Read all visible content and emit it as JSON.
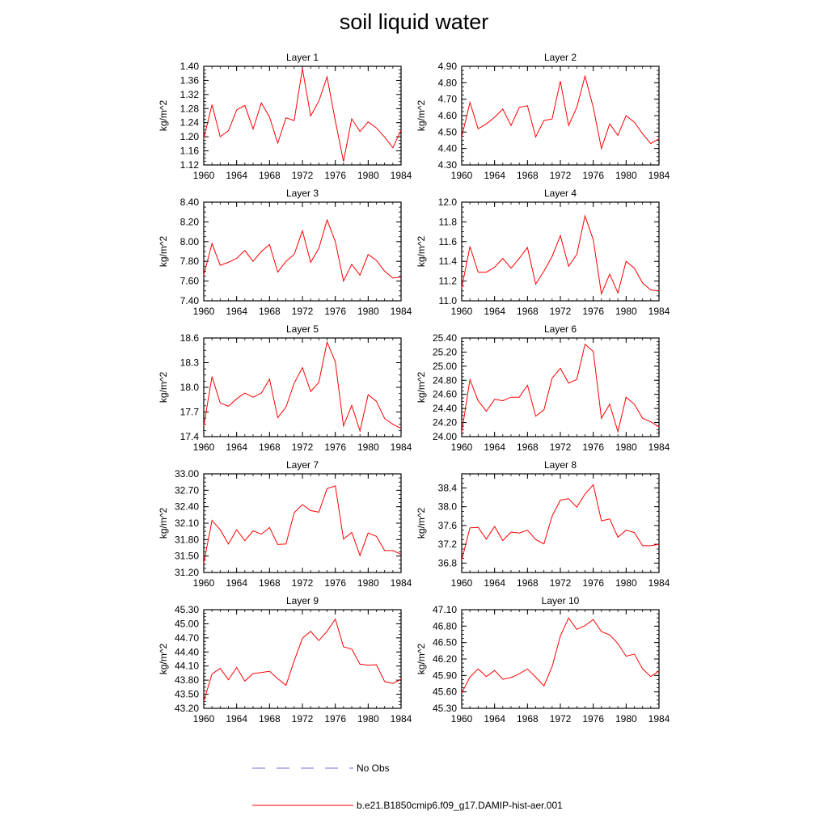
{
  "title": "soil liquid water",
  "legend": [
    {
      "label": "No Obs",
      "color": "#6f6fd8",
      "style": "dashed"
    },
    {
      "label": "b.e21.B1850cmip6.f09_g17.DAMIP-hist-aer.001",
      "color": "#ff0000",
      "style": "solid"
    }
  ],
  "chart_data": [
    {
      "type": "line",
      "title": "Layer 1",
      "ylabel": "kg/m^2",
      "x": [
        1960,
        1961,
        1962,
        1963,
        1964,
        1965,
        1966,
        1967,
        1968,
        1969,
        1970,
        1971,
        1972,
        1973,
        1974,
        1975,
        1976,
        1977,
        1978,
        1979,
        1980,
        1981,
        1982,
        1983,
        1984
      ],
      "xticks": [
        1960,
        1964,
        1968,
        1972,
        1976,
        1980,
        1984
      ],
      "xlim": [
        1960,
        1984
      ],
      "ylim": [
        1.12,
        1.4
      ],
      "yticks": [
        "1.12",
        "1.16",
        "1.20",
        "1.24",
        "1.28",
        "1.32",
        "1.36",
        "1.40"
      ],
      "series": [
        {
          "name": "b.e21.B1850cmip6.f09_g17.DAMIP-hist-aer.001",
          "values": [
            1.195,
            1.291,
            1.2,
            1.217,
            1.276,
            1.289,
            1.222,
            1.296,
            1.256,
            1.182,
            1.254,
            1.246,
            1.393,
            1.259,
            1.301,
            1.37,
            1.245,
            1.13,
            1.251,
            1.215,
            1.242,
            1.225,
            1.199,
            1.169,
            1.219
          ]
        }
      ]
    },
    {
      "type": "line",
      "title": "Layer 2",
      "ylabel": "kg/m^2",
      "x": [
        1960,
        1961,
        1962,
        1963,
        1964,
        1965,
        1966,
        1967,
        1968,
        1969,
        1970,
        1971,
        1972,
        1973,
        1974,
        1975,
        1976,
        1977,
        1978,
        1979,
        1980,
        1981,
        1982,
        1983,
        1984
      ],
      "xticks": [
        1960,
        1964,
        1968,
        1972,
        1976,
        1980,
        1984
      ],
      "xlim": [
        1960,
        1984
      ],
      "ylim": [
        4.3,
        4.9
      ],
      "yticks": [
        "4.30",
        "4.40",
        "4.50",
        "4.60",
        "4.70",
        "4.80",
        "4.90"
      ],
      "series": [
        {
          "name": "b.e21.B1850cmip6.f09_g17.DAMIP-hist-aer.001",
          "values": [
            4.47,
            4.68,
            4.52,
            4.55,
            4.59,
            4.64,
            4.54,
            4.65,
            4.66,
            4.47,
            4.57,
            4.58,
            4.81,
            4.54,
            4.65,
            4.84,
            4.65,
            4.4,
            4.55,
            4.48,
            4.6,
            4.56,
            4.49,
            4.43,
            4.46
          ]
        }
      ]
    },
    {
      "type": "line",
      "title": "Layer 3",
      "ylabel": "kg/m^2",
      "x": [
        1960,
        1961,
        1962,
        1963,
        1964,
        1965,
        1966,
        1967,
        1968,
        1969,
        1970,
        1971,
        1972,
        1973,
        1974,
        1975,
        1976,
        1977,
        1978,
        1979,
        1980,
        1981,
        1982,
        1983,
        1984
      ],
      "xticks": [
        1960,
        1964,
        1968,
        1972,
        1976,
        1980,
        1984
      ],
      "xlim": [
        1960,
        1984
      ],
      "ylim": [
        7.4,
        8.4
      ],
      "yticks": [
        "7.40",
        "7.60",
        "7.80",
        "8.00",
        "8.20",
        "8.40"
      ],
      "series": [
        {
          "name": "b.e21.B1850cmip6.f09_g17.DAMIP-hist-aer.001",
          "values": [
            7.66,
            7.98,
            7.76,
            7.79,
            7.83,
            7.91,
            7.8,
            7.9,
            7.97,
            7.69,
            7.8,
            7.87,
            8.11,
            7.79,
            7.93,
            8.22,
            8.0,
            7.6,
            7.77,
            7.66,
            7.87,
            7.81,
            7.7,
            7.63,
            7.64
          ]
        }
      ]
    },
    {
      "type": "line",
      "title": "Layer 4",
      "ylabel": "kg/m^2",
      "x": [
        1960,
        1961,
        1962,
        1963,
        1964,
        1965,
        1966,
        1967,
        1968,
        1969,
        1970,
        1971,
        1972,
        1973,
        1974,
        1975,
        1976,
        1977,
        1978,
        1979,
        1980,
        1981,
        1982,
        1983,
        1984
      ],
      "xticks": [
        1960,
        1964,
        1968,
        1972,
        1976,
        1980,
        1984
      ],
      "xlim": [
        1960,
        1984
      ],
      "ylim": [
        11.0,
        12.0
      ],
      "yticks": [
        "11.0",
        "11.2",
        "11.4",
        "11.6",
        "11.8",
        "12.0"
      ],
      "series": [
        {
          "name": "b.e21.B1850cmip6.f09_g17.DAMIP-hist-aer.001",
          "values": [
            11.13,
            11.55,
            11.29,
            11.29,
            11.34,
            11.43,
            11.33,
            11.43,
            11.54,
            11.17,
            11.3,
            11.45,
            11.66,
            11.35,
            11.47,
            11.86,
            11.62,
            11.07,
            11.27,
            11.08,
            11.4,
            11.33,
            11.18,
            11.11,
            11.1
          ]
        }
      ]
    },
    {
      "type": "line",
      "title": "Layer 5",
      "ylabel": "kg/m^2",
      "x": [
        1960,
        1961,
        1962,
        1963,
        1964,
        1965,
        1966,
        1967,
        1968,
        1969,
        1970,
        1971,
        1972,
        1973,
        1974,
        1975,
        1976,
        1977,
        1978,
        1979,
        1980,
        1981,
        1982,
        1983,
        1984
      ],
      "xticks": [
        1960,
        1964,
        1968,
        1972,
        1976,
        1980,
        1984
      ],
      "xlim": [
        1960,
        1984
      ],
      "ylim": [
        17.4,
        18.6
      ],
      "yticks": [
        "17.4",
        "17.7",
        "18.0",
        "18.3",
        "18.6"
      ],
      "series": [
        {
          "name": "b.e21.B1850cmip6.f09_g17.DAMIP-hist-aer.001",
          "values": [
            17.53,
            18.13,
            17.81,
            17.77,
            17.86,
            17.93,
            17.88,
            17.93,
            18.1,
            17.63,
            17.76,
            18.05,
            18.24,
            17.95,
            18.06,
            18.55,
            18.31,
            17.53,
            17.78,
            17.47,
            17.91,
            17.83,
            17.62,
            17.55,
            17.5
          ]
        }
      ]
    },
    {
      "type": "line",
      "title": "Layer 6",
      "ylabel": "kg/m^2",
      "x": [
        1960,
        1961,
        1962,
        1963,
        1964,
        1965,
        1966,
        1967,
        1968,
        1969,
        1970,
        1971,
        1972,
        1973,
        1974,
        1975,
        1976,
        1977,
        1978,
        1979,
        1980,
        1981,
        1982,
        1983,
        1984
      ],
      "xticks": [
        1960,
        1964,
        1968,
        1972,
        1976,
        1980,
        1984
      ],
      "xlim": [
        1960,
        1984
      ],
      "ylim": [
        24.0,
        25.4
      ],
      "yticks": [
        "24.00",
        "24.20",
        "24.40",
        "24.60",
        "24.80",
        "25.00",
        "25.20",
        "25.40"
      ],
      "series": [
        {
          "name": "b.e21.B1850cmip6.f09_g17.DAMIP-hist-aer.001",
          "values": [
            24.06,
            24.81,
            24.51,
            24.36,
            24.53,
            24.51,
            24.56,
            24.56,
            24.73,
            24.29,
            24.38,
            24.83,
            24.97,
            24.76,
            24.81,
            25.31,
            25.21,
            24.26,
            24.46,
            24.07,
            24.56,
            24.46,
            24.26,
            24.21,
            24.14
          ]
        }
      ]
    },
    {
      "type": "line",
      "title": "Layer 7",
      "ylabel": "kg/m^2",
      "x": [
        1960,
        1961,
        1962,
        1963,
        1964,
        1965,
        1966,
        1967,
        1968,
        1969,
        1970,
        1971,
        1972,
        1973,
        1974,
        1975,
        1976,
        1977,
        1978,
        1979,
        1980,
        1981,
        1982,
        1983,
        1984
      ],
      "xticks": [
        1960,
        1964,
        1968,
        1972,
        1976,
        1980,
        1984
      ],
      "xlim": [
        1960,
        1984
      ],
      "ylim": [
        31.2,
        33.0
      ],
      "yticks": [
        "31.20",
        "31.50",
        "31.80",
        "32.10",
        "32.40",
        "32.70",
        "33.00"
      ],
      "series": [
        {
          "name": "b.e21.B1850cmip6.f09_g17.DAMIP-hist-aer.001",
          "values": [
            31.37,
            32.15,
            31.98,
            31.72,
            31.98,
            31.78,
            31.96,
            31.9,
            32.02,
            31.71,
            31.72,
            32.29,
            32.44,
            32.33,
            32.3,
            32.73,
            32.78,
            31.81,
            31.93,
            31.51,
            31.92,
            31.86,
            31.6,
            31.6,
            31.53
          ]
        }
      ]
    },
    {
      "type": "line",
      "title": "Layer 8",
      "ylabel": "kg/m^2",
      "x": [
        1960,
        1961,
        1962,
        1963,
        1964,
        1965,
        1966,
        1967,
        1968,
        1969,
        1970,
        1971,
        1972,
        1973,
        1974,
        1975,
        1976,
        1977,
        1978,
        1979,
        1980,
        1981,
        1982,
        1983,
        1984
      ],
      "xticks": [
        1960,
        1964,
        1968,
        1972,
        1976,
        1980,
        1984
      ],
      "xlim": [
        1960,
        1984
      ],
      "ylim": [
        36.6,
        38.7
      ],
      "yticks": [
        "36.8",
        "37.2",
        "37.6",
        "38.0",
        "38.4"
      ],
      "series": [
        {
          "name": "b.e21.B1850cmip6.f09_g17.DAMIP-hist-aer.001",
          "values": [
            36.86,
            37.55,
            37.56,
            37.31,
            37.58,
            37.28,
            37.46,
            37.44,
            37.5,
            37.3,
            37.21,
            37.8,
            38.14,
            38.17,
            37.99,
            38.27,
            38.47,
            37.7,
            37.74,
            37.35,
            37.5,
            37.45,
            37.17,
            37.17,
            37.2
          ]
        }
      ]
    },
    {
      "type": "line",
      "title": "Layer 9",
      "ylabel": "kg/m^2",
      "x": [
        1960,
        1961,
        1962,
        1963,
        1964,
        1965,
        1966,
        1967,
        1968,
        1969,
        1970,
        1971,
        1972,
        1973,
        1974,
        1975,
        1976,
        1977,
        1978,
        1979,
        1980,
        1981,
        1982,
        1983,
        1984
      ],
      "xticks": [
        1960,
        1964,
        1968,
        1972,
        1976,
        1980,
        1984
      ],
      "xlim": [
        1960,
        1984
      ],
      "ylim": [
        43.2,
        45.3
      ],
      "yticks": [
        "43.20",
        "43.50",
        "43.80",
        "44.10",
        "44.40",
        "44.70",
        "45.00",
        "45.30"
      ],
      "series": [
        {
          "name": "b.e21.B1850cmip6.f09_g17.DAMIP-hist-aer.001",
          "values": [
            43.35,
            43.93,
            44.05,
            43.81,
            44.07,
            43.78,
            43.94,
            43.96,
            43.99,
            43.83,
            43.69,
            44.21,
            44.69,
            44.84,
            44.64,
            44.84,
            45.1,
            44.51,
            44.46,
            44.14,
            44.12,
            44.13,
            43.77,
            43.73,
            43.82
          ]
        }
      ]
    },
    {
      "type": "line",
      "title": "Layer 10",
      "ylabel": "kg/m^2",
      "x": [
        1960,
        1961,
        1962,
        1963,
        1964,
        1965,
        1966,
        1967,
        1968,
        1969,
        1970,
        1971,
        1972,
        1973,
        1974,
        1975,
        1976,
        1977,
        1978,
        1979,
        1980,
        1981,
        1982,
        1983,
        1984
      ],
      "xticks": [
        1960,
        1964,
        1968,
        1972,
        1976,
        1980,
        1984
      ],
      "xlim": [
        1960,
        1984
      ],
      "ylim": [
        45.3,
        47.1
      ],
      "yticks": [
        "45.30",
        "45.60",
        "45.90",
        "46.20",
        "46.50",
        "46.80",
        "47.10"
      ],
      "series": [
        {
          "name": "b.e21.B1850cmip6.f09_g17.DAMIP-hist-aer.001",
          "values": [
            45.58,
            45.87,
            46.02,
            45.88,
            45.99,
            45.83,
            45.86,
            45.93,
            46.02,
            45.87,
            45.71,
            46.06,
            46.62,
            46.95,
            46.74,
            46.81,
            46.92,
            46.7,
            46.64,
            46.48,
            46.25,
            46.29,
            46.02,
            45.88,
            45.98
          ]
        }
      ]
    }
  ]
}
